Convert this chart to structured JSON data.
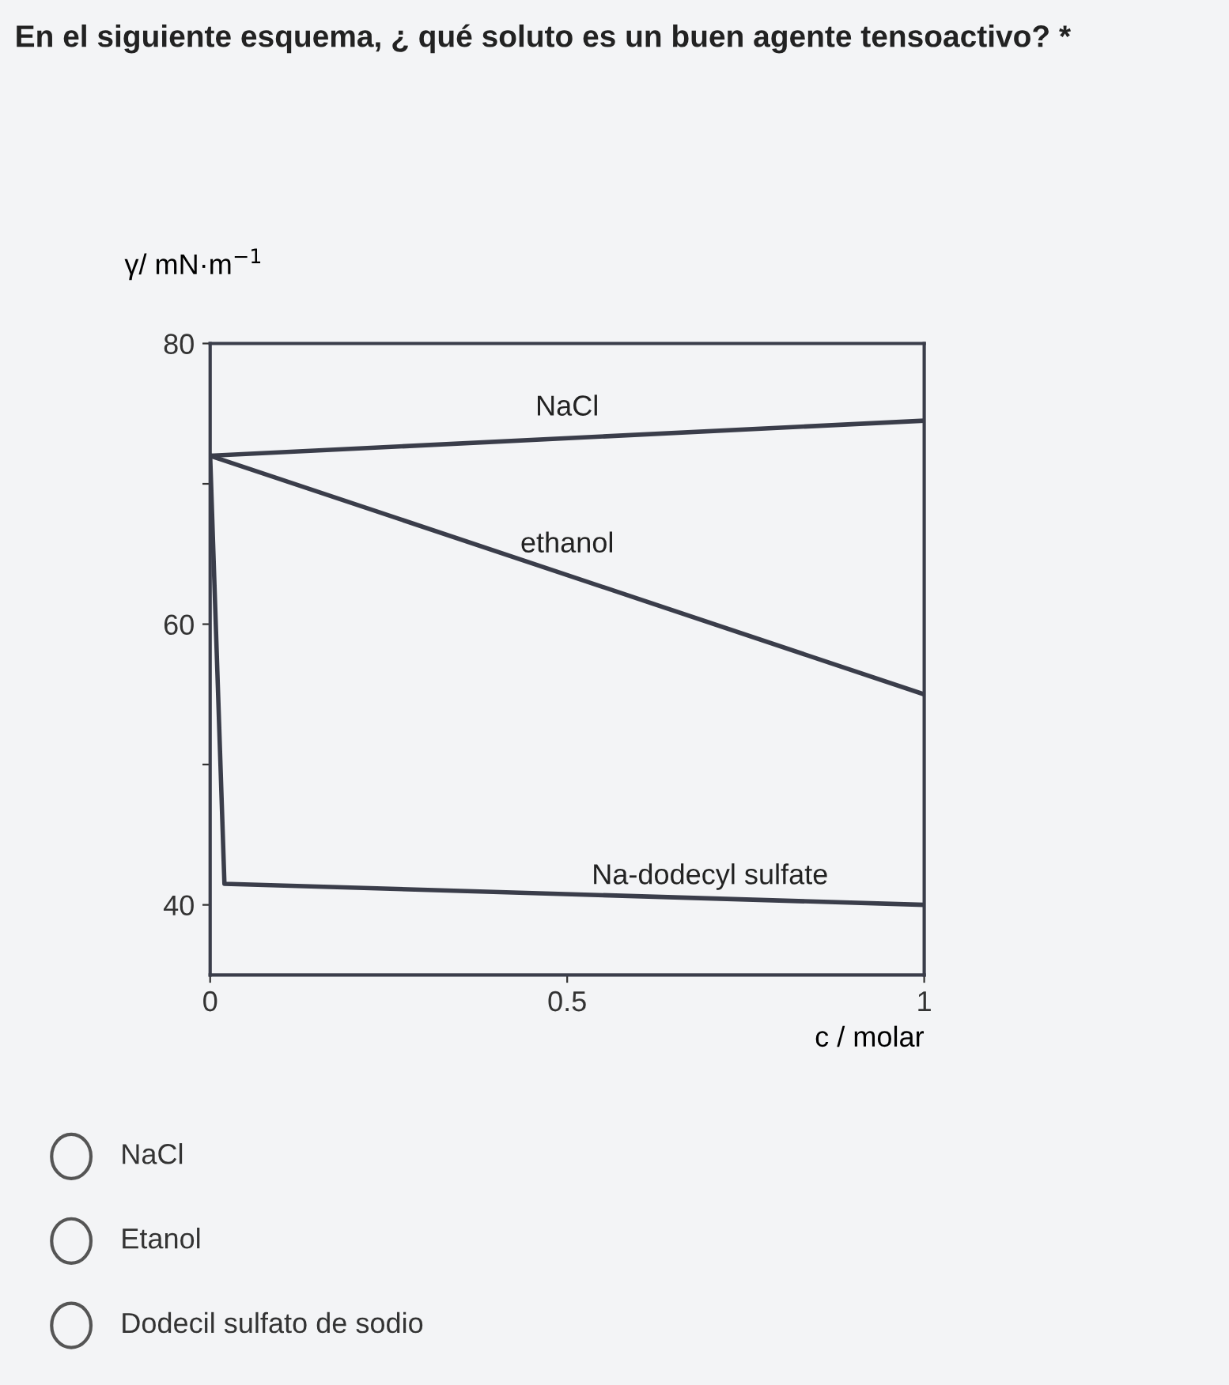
{
  "chart_data": {
    "type": "line",
    "title": "En el siguiente esquema, ¿ qué soluto es un buen agente tensoactivo? *",
    "xlabel": "c / molar",
    "ylabel": "γ/ mN·m$^{−1}$",
    "series": [
      {
        "name": "NaCl",
        "color": "#3a3d4a",
        "x": [
          0,
          1
        ],
        "values": [
          72,
          74.5
        ]
      },
      {
        "name": "ethanol",
        "color": "#3a3d4a",
        "x": [
          0,
          1
        ],
        "values": [
          72,
          55
        ]
      },
      {
        "name": "Na-dodecyl sulfate",
        "color": "#3a3d4a",
        "x": [
          0,
          0.02,
          1
        ],
        "values": [
          72,
          41.5,
          40
        ]
      }
    ],
    "xlim": [
      0,
      1
    ],
    "ylim": [
      35,
      80
    ],
    "xticks": [
      0,
      0.5,
      1
    ],
    "yticks": [
      40,
      {
        "value": 50,
        "label": null
      },
      60,
      {
        "value": 70,
        "label": null
      },
      80
    ],
    "grid": false,
    "legend": false,
    "marker": "none",
    "line_style": "solid",
    "annotations": [
      "NaCl",
      "Etanol",
      "Dodecil sulfato de sodio"
    ]
  }
}
